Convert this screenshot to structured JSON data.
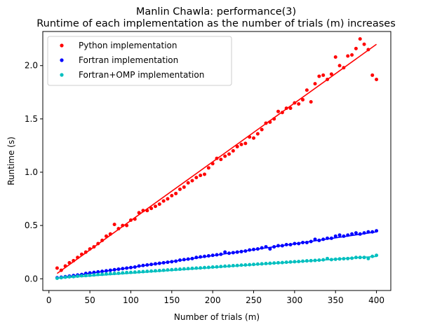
{
  "chart_data": {
    "type": "scatter",
    "title": "Manlin Chawla: performance(3)",
    "subtitle": "Runtime of each implementation as the number of trials (m) increases",
    "xlabel": "Number of trials (m)",
    "ylabel": "Runtime (s)",
    "xlim": [
      -7.5,
      417.5
    ],
    "ylim": [
      -0.11,
      2.32
    ],
    "xticks": [
      0,
      50,
      100,
      150,
      200,
      250,
      300,
      350,
      400
    ],
    "yticks": [
      0.0,
      0.5,
      1.0,
      1.5,
      2.0
    ],
    "grid": false,
    "legend_position": "top-left",
    "x": [
      10,
      15,
      20,
      25,
      30,
      35,
      40,
      45,
      50,
      55,
      60,
      65,
      70,
      75,
      80,
      85,
      90,
      95,
      100,
      105,
      110,
      115,
      120,
      125,
      130,
      135,
      140,
      145,
      150,
      155,
      160,
      165,
      170,
      175,
      180,
      185,
      190,
      195,
      200,
      205,
      210,
      215,
      220,
      225,
      230,
      235,
      240,
      245,
      250,
      255,
      260,
      265,
      270,
      275,
      280,
      285,
      290,
      295,
      300,
      305,
      310,
      315,
      320,
      325,
      330,
      335,
      340,
      345,
      350,
      355,
      360,
      365,
      370,
      375,
      380,
      385,
      390,
      395,
      400
    ],
    "series": [
      {
        "name": "Python implementation",
        "color": "#ff0000",
        "fit": [
          [
            10,
            0.05
          ],
          [
            400,
            2.2
          ]
        ],
        "values": [
          0.1,
          0.08,
          0.12,
          0.15,
          0.17,
          0.2,
          0.23,
          0.25,
          0.28,
          0.3,
          0.33,
          0.36,
          0.4,
          0.42,
          0.51,
          0.47,
          0.5,
          0.5,
          0.55,
          0.56,
          0.62,
          0.64,
          0.64,
          0.66,
          0.68,
          0.7,
          0.73,
          0.75,
          0.78,
          0.8,
          0.84,
          0.86,
          0.9,
          0.92,
          0.95,
          0.97,
          0.98,
          1.04,
          1.08,
          1.13,
          1.12,
          1.15,
          1.17,
          1.2,
          1.24,
          1.26,
          1.27,
          1.33,
          1.32,
          1.36,
          1.4,
          1.46,
          1.47,
          1.5,
          1.57,
          1.56,
          1.6,
          1.6,
          1.65,
          1.64,
          1.68,
          1.77,
          1.66,
          1.83,
          1.9,
          1.91,
          1.87,
          1.92,
          2.08,
          2.0,
          1.98,
          2.09,
          2.1,
          2.16,
          2.25,
          2.2,
          2.15,
          1.91,
          1.87
        ]
      },
      {
        "name": "Fortran implementation",
        "color": "#0000ff",
        "fit": [
          [
            10,
            0.005
          ],
          [
            400,
            0.44
          ]
        ],
        "values": [
          0.01,
          0.015,
          0.02,
          0.025,
          0.03,
          0.035,
          0.04,
          0.05,
          0.055,
          0.06,
          0.065,
          0.07,
          0.075,
          0.08,
          0.085,
          0.09,
          0.095,
          0.1,
          0.105,
          0.11,
          0.12,
          0.125,
          0.13,
          0.135,
          0.14,
          0.145,
          0.15,
          0.155,
          0.16,
          0.165,
          0.175,
          0.18,
          0.185,
          0.19,
          0.2,
          0.205,
          0.21,
          0.215,
          0.22,
          0.225,
          0.23,
          0.25,
          0.24,
          0.245,
          0.25,
          0.255,
          0.26,
          0.27,
          0.275,
          0.28,
          0.29,
          0.3,
          0.28,
          0.3,
          0.31,
          0.31,
          0.32,
          0.32,
          0.33,
          0.33,
          0.34,
          0.34,
          0.35,
          0.37,
          0.36,
          0.37,
          0.38,
          0.38,
          0.4,
          0.41,
          0.4,
          0.41,
          0.42,
          0.43,
          0.42,
          0.43,
          0.44,
          0.44,
          0.45
        ]
      },
      {
        "name": "Fortran+OMP implementation",
        "color": "#00bfbf",
        "fit": [
          [
            10,
            0.005
          ],
          [
            400,
            0.21
          ]
        ],
        "values": [
          0.005,
          0.01,
          0.015,
          0.018,
          0.02,
          0.025,
          0.028,
          0.03,
          0.033,
          0.036,
          0.04,
          0.042,
          0.045,
          0.048,
          0.05,
          0.052,
          0.055,
          0.058,
          0.06,
          0.062,
          0.065,
          0.067,
          0.07,
          0.072,
          0.075,
          0.077,
          0.08,
          0.083,
          0.085,
          0.088,
          0.09,
          0.093,
          0.095,
          0.098,
          0.1,
          0.102,
          0.105,
          0.107,
          0.11,
          0.112,
          0.115,
          0.118,
          0.12,
          0.123,
          0.125,
          0.128,
          0.13,
          0.132,
          0.135,
          0.138,
          0.14,
          0.143,
          0.145,
          0.148,
          0.15,
          0.152,
          0.155,
          0.158,
          0.16,
          0.162,
          0.165,
          0.168,
          0.17,
          0.172,
          0.175,
          0.178,
          0.19,
          0.18,
          0.183,
          0.186,
          0.188,
          0.19,
          0.193,
          0.2,
          0.2,
          0.2,
          0.19,
          0.21,
          0.22
        ]
      }
    ]
  }
}
